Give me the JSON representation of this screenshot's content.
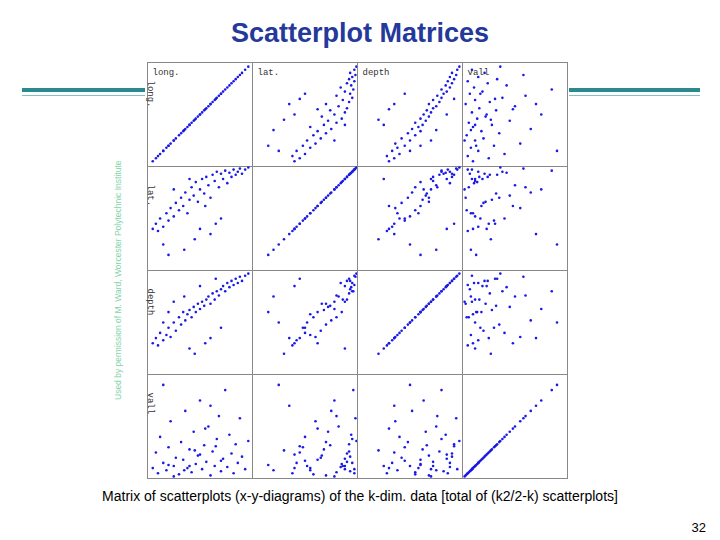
{
  "chart_data": {
    "type": "scatter_matrix",
    "title": "Scatterplot Matrices",
    "caption": "Matrix of scatterplots (x-y-diagrams) of the k-dim. data [total of (k2/2-k) scatterplots]",
    "annotations": [
      "Used by permission of M. Ward, Worcester Polytechnic Institute",
      "32"
    ],
    "dimensions": [
      "long.",
      "lat.",
      "depth",
      "vall"
    ],
    "color": "#1a1ae6",
    "xlim": [
      0,
      1
    ],
    "ylim": [
      0,
      1
    ],
    "tick_labels": false,
    "records": [
      [
        0.05,
        0.4,
        0.3,
        0.1
      ],
      [
        0.08,
        0.45,
        0.35,
        0.25
      ],
      [
        0.1,
        0.38,
        0.28,
        0.05
      ],
      [
        0.12,
        0.5,
        0.4,
        0.4
      ],
      [
        0.15,
        0.42,
        0.33,
        0.15
      ],
      [
        0.18,
        0.55,
        0.38,
        0.08
      ],
      [
        0.2,
        0.48,
        0.45,
        0.3
      ],
      [
        0.22,
        0.6,
        0.36,
        0.55
      ],
      [
        0.25,
        0.52,
        0.5,
        0.12
      ],
      [
        0.27,
        0.65,
        0.42,
        0.2
      ],
      [
        0.3,
        0.58,
        0.55,
        0.04
      ],
      [
        0.32,
        0.7,
        0.48,
        0.35
      ],
      [
        0.34,
        0.62,
        0.6,
        0.18
      ],
      [
        0.36,
        0.75,
        0.52,
        0.65
      ],
      [
        0.38,
        0.55,
        0.58,
        0.1
      ],
      [
        0.4,
        0.68,
        0.62,
        0.28
      ],
      [
        0.42,
        0.8,
        0.55,
        0.06
      ],
      [
        0.44,
        0.72,
        0.65,
        0.45
      ],
      [
        0.46,
        0.85,
        0.6,
        0.14
      ],
      [
        0.48,
        0.66,
        0.68,
        0.22
      ],
      [
        0.5,
        0.78,
        0.63,
        0.75
      ],
      [
        0.52,
        0.88,
        0.7,
        0.09
      ],
      [
        0.54,
        0.74,
        0.66,
        0.32
      ],
      [
        0.56,
        0.9,
        0.72,
        0.16
      ],
      [
        0.58,
        0.82,
        0.75,
        0.5
      ],
      [
        0.6,
        0.7,
        0.68,
        0.03
      ],
      [
        0.62,
        0.92,
        0.78,
        0.26
      ],
      [
        0.64,
        0.86,
        0.72,
        0.12
      ],
      [
        0.66,
        0.95,
        0.8,
        0.38
      ],
      [
        0.68,
        0.8,
        0.76,
        0.6
      ],
      [
        0.7,
        0.93,
        0.82,
        0.07
      ],
      [
        0.72,
        0.88,
        0.85,
        0.19
      ],
      [
        0.74,
        0.96,
        0.8,
        0.85
      ],
      [
        0.76,
        0.84,
        0.88,
        0.11
      ],
      [
        0.78,
        0.94,
        0.84,
        0.42
      ],
      [
        0.8,
        0.9,
        0.9,
        0.24
      ],
      [
        0.82,
        0.97,
        0.86,
        0.05
      ],
      [
        0.84,
        0.92,
        0.92,
        0.33
      ],
      [
        0.86,
        0.95,
        0.88,
        0.15
      ],
      [
        0.88,
        0.98,
        0.94,
        0.58
      ],
      [
        0.9,
        0.93,
        0.9,
        0.21
      ],
      [
        0.93,
        0.97,
        0.95,
        0.09
      ],
      [
        0.96,
        0.99,
        0.97,
        0.36
      ],
      [
        0.2,
        0.15,
        0.6,
        0.13
      ],
      [
        0.45,
        0.3,
        0.2,
        0.27
      ],
      [
        0.6,
        0.35,
        0.35,
        0.7
      ],
      [
        0.35,
        0.2,
        0.75,
        0.08
      ],
      [
        0.7,
        0.5,
        0.45,
        0.17
      ],
      [
        0.55,
        0.62,
        0.3,
        0.48
      ],
      [
        0.25,
        0.78,
        0.7,
        0.02
      ],
      [
        0.65,
        0.45,
        0.92,
        0.31
      ],
      [
        0.4,
        0.88,
        0.25,
        0.12
      ],
      [
        0.15,
        0.25,
        0.5,
        0.9
      ],
      [
        0.5,
        0.4,
        0.85,
        0.23
      ]
    ]
  }
}
